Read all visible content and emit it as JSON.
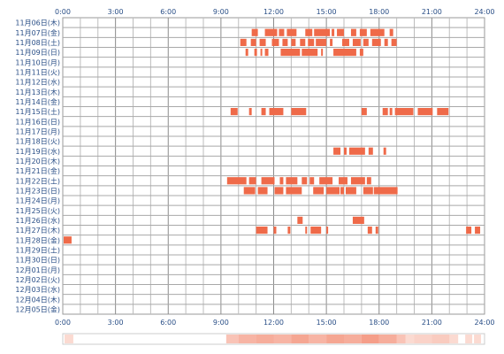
{
  "chart_data": {
    "type": "heatmap",
    "x_ticks": [
      "0:00",
      "3:00",
      "6:00",
      "9:00",
      "12:00",
      "15:00",
      "18:00",
      "21:00",
      "24:00"
    ],
    "x_range": [
      0,
      24
    ],
    "dates": [
      "11月06日(木)",
      "11月07日(金)",
      "11月08日(土)",
      "11月09日(日)",
      "11月10日(月)",
      "11月11日(火)",
      "11月12日(水)",
      "11月13日(木)",
      "11月14日(金)",
      "11月15日(土)",
      "11月16日(日)",
      "11月17日(月)",
      "11月18日(火)",
      "11月19日(水)",
      "11月20日(木)",
      "11月21日(金)",
      "11月22日(土)",
      "11月23日(日)",
      "11月24日(月)",
      "11月25日(火)",
      "11月26日(水)",
      "11月27日(木)",
      "11月28日(金)",
      "11月29日(土)",
      "11月30日(日)",
      "12月01日(月)",
      "12月02日(火)",
      "12月03日(水)",
      "12月04日(木)",
      "12月05日(金)"
    ],
    "activity_color": "#ef6a49",
    "grid": true,
    "rows": [
      [],
      [
        [
          10.75,
          11.1
        ],
        [
          11.5,
          12.2
        ],
        [
          12.3,
          12.6
        ],
        [
          12.75,
          13.3
        ],
        [
          13.8,
          14.2
        ],
        [
          14.3,
          15.2
        ],
        [
          15.3,
          15.45
        ],
        [
          15.6,
          16.0
        ],
        [
          16.4,
          16.7
        ],
        [
          16.9,
          17.3
        ],
        [
          17.5,
          18.3
        ],
        [
          18.6,
          18.8
        ]
      ],
      [
        [
          10.1,
          10.45
        ],
        [
          10.7,
          11.0
        ],
        [
          11.2,
          11.55
        ],
        [
          11.9,
          12.3
        ],
        [
          12.5,
          12.8
        ],
        [
          13.0,
          13.25
        ],
        [
          13.5,
          13.8
        ],
        [
          13.95,
          14.3
        ],
        [
          14.4,
          15.0
        ],
        [
          15.2,
          15.35
        ],
        [
          15.9,
          16.3
        ],
        [
          16.5,
          16.95
        ],
        [
          17.1,
          17.4
        ],
        [
          17.6,
          18.1
        ],
        [
          18.3,
          18.5
        ],
        [
          18.7,
          19.0
        ]
      ],
      [
        [
          10.4,
          10.55
        ],
        [
          10.9,
          11.05
        ],
        [
          11.25,
          11.35
        ],
        [
          11.5,
          11.7
        ],
        [
          12.4,
          13.5
        ],
        [
          13.6,
          14.5
        ],
        [
          14.7,
          14.8
        ],
        [
          15.4,
          16.7
        ],
        [
          16.9,
          17.1
        ]
      ],
      [],
      [],
      [],
      [],
      [],
      [
        [
          9.55,
          9.95
        ],
        [
          10.6,
          10.75
        ],
        [
          11.3,
          11.55
        ],
        [
          11.75,
          12.55
        ],
        [
          13.0,
          13.85
        ],
        [
          17.0,
          17.3
        ],
        [
          18.2,
          18.5
        ],
        [
          18.6,
          18.75
        ],
        [
          18.9,
          19.95
        ],
        [
          20.2,
          21.05
        ],
        [
          21.3,
          21.95
        ]
      ],
      [],
      [],
      [],
      [
        [
          15.4,
          15.8
        ],
        [
          16.0,
          16.15
        ],
        [
          16.3,
          17.2
        ],
        [
          17.4,
          17.65
        ],
        [
          18.25,
          18.4
        ]
      ],
      [],
      [],
      [
        [
          9.35,
          10.45
        ],
        [
          10.6,
          11.0
        ],
        [
          11.3,
          12.05
        ],
        [
          12.35,
          12.55
        ],
        [
          12.7,
          13.35
        ],
        [
          13.6,
          13.9
        ],
        [
          14.05,
          14.3
        ],
        [
          14.6,
          15.35
        ],
        [
          15.7,
          16.2
        ],
        [
          16.4,
          17.2
        ],
        [
          17.3,
          17.55
        ]
      ],
      [
        [
          10.3,
          10.95
        ],
        [
          11.1,
          11.65
        ],
        [
          12.05,
          12.55
        ],
        [
          12.7,
          13.6
        ],
        [
          14.25,
          14.85
        ],
        [
          15.0,
          15.75
        ],
        [
          15.8,
          16.0
        ],
        [
          16.1,
          16.7
        ],
        [
          17.1,
          17.65
        ],
        [
          17.7,
          19.05
        ]
      ],
      [],
      [],
      [
        [
          13.35,
          13.65
        ],
        [
          16.5,
          17.15
        ]
      ],
      [
        [
          11.0,
          11.65
        ],
        [
          12.0,
          12.15
        ],
        [
          12.8,
          12.95
        ],
        [
          13.8,
          13.9
        ],
        [
          14.1,
          14.7
        ],
        [
          15.0,
          15.1
        ],
        [
          17.35,
          17.6
        ],
        [
          17.8,
          17.95
        ],
        [
          22.95,
          23.25
        ],
        [
          23.45,
          23.75
        ]
      ],
      [
        [
          0.05,
          0.5
        ]
      ],
      [],
      [],
      [],
      [],
      [],
      [],
      []
    ],
    "summary_bands": [
      [
        0.1,
        0.6,
        0.25
      ],
      [
        9.3,
        10.0,
        0.4
      ],
      [
        10.0,
        11.0,
        0.5
      ],
      [
        11.0,
        12.0,
        0.55
      ],
      [
        12.0,
        13.0,
        0.5
      ],
      [
        13.0,
        14.0,
        0.6
      ],
      [
        14.0,
        15.0,
        0.5
      ],
      [
        15.0,
        16.0,
        0.6
      ],
      [
        16.0,
        17.0,
        0.55
      ],
      [
        17.0,
        18.0,
        0.65
      ],
      [
        18.0,
        19.0,
        0.55
      ],
      [
        19.0,
        19.5,
        0.4
      ],
      [
        19.5,
        20.0,
        0.25
      ],
      [
        20.0,
        21.0,
        0.3
      ],
      [
        21.0,
        22.0,
        0.35
      ],
      [
        22.0,
        22.5,
        0.25
      ],
      [
        22.9,
        23.3,
        0.25
      ],
      [
        23.4,
        23.8,
        0.25
      ]
    ]
  }
}
